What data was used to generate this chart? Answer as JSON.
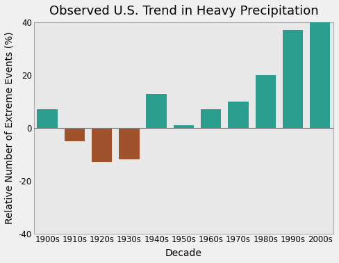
{
  "title": "Observed U.S. Trend in Heavy Precipitation",
  "xlabel": "Decade",
  "ylabel": "Relative Number of Extreme Events (%)",
  "categories": [
    "1900s",
    "1910s",
    "1920s",
    "1930s",
    "1940s",
    "1950s",
    "1960s",
    "1970s",
    "1980s",
    "1990s",
    "2000s"
  ],
  "values": [
    7,
    -5,
    -13,
    -12,
    13,
    1,
    7,
    10,
    20,
    37,
    40
  ],
  "bar_colors": [
    "#2a9d8f",
    "#a0522d",
    "#a0522d",
    "#a0522d",
    "#2a9d8f",
    "#2a9d8f",
    "#2a9d8f",
    "#2a9d8f",
    "#2a9d8f",
    "#2a9d8f",
    "#2a9d8f"
  ],
  "ylim": [
    -40,
    40
  ],
  "yticks": [
    -40,
    -20,
    0,
    20,
    40
  ],
  "plot_bg_color": "#e8e8e8",
  "fig_bg_color": "#f0f0f0",
  "title_fontsize": 13,
  "axis_label_fontsize": 10,
  "tick_fontsize": 8.5,
  "bar_width": 0.75
}
